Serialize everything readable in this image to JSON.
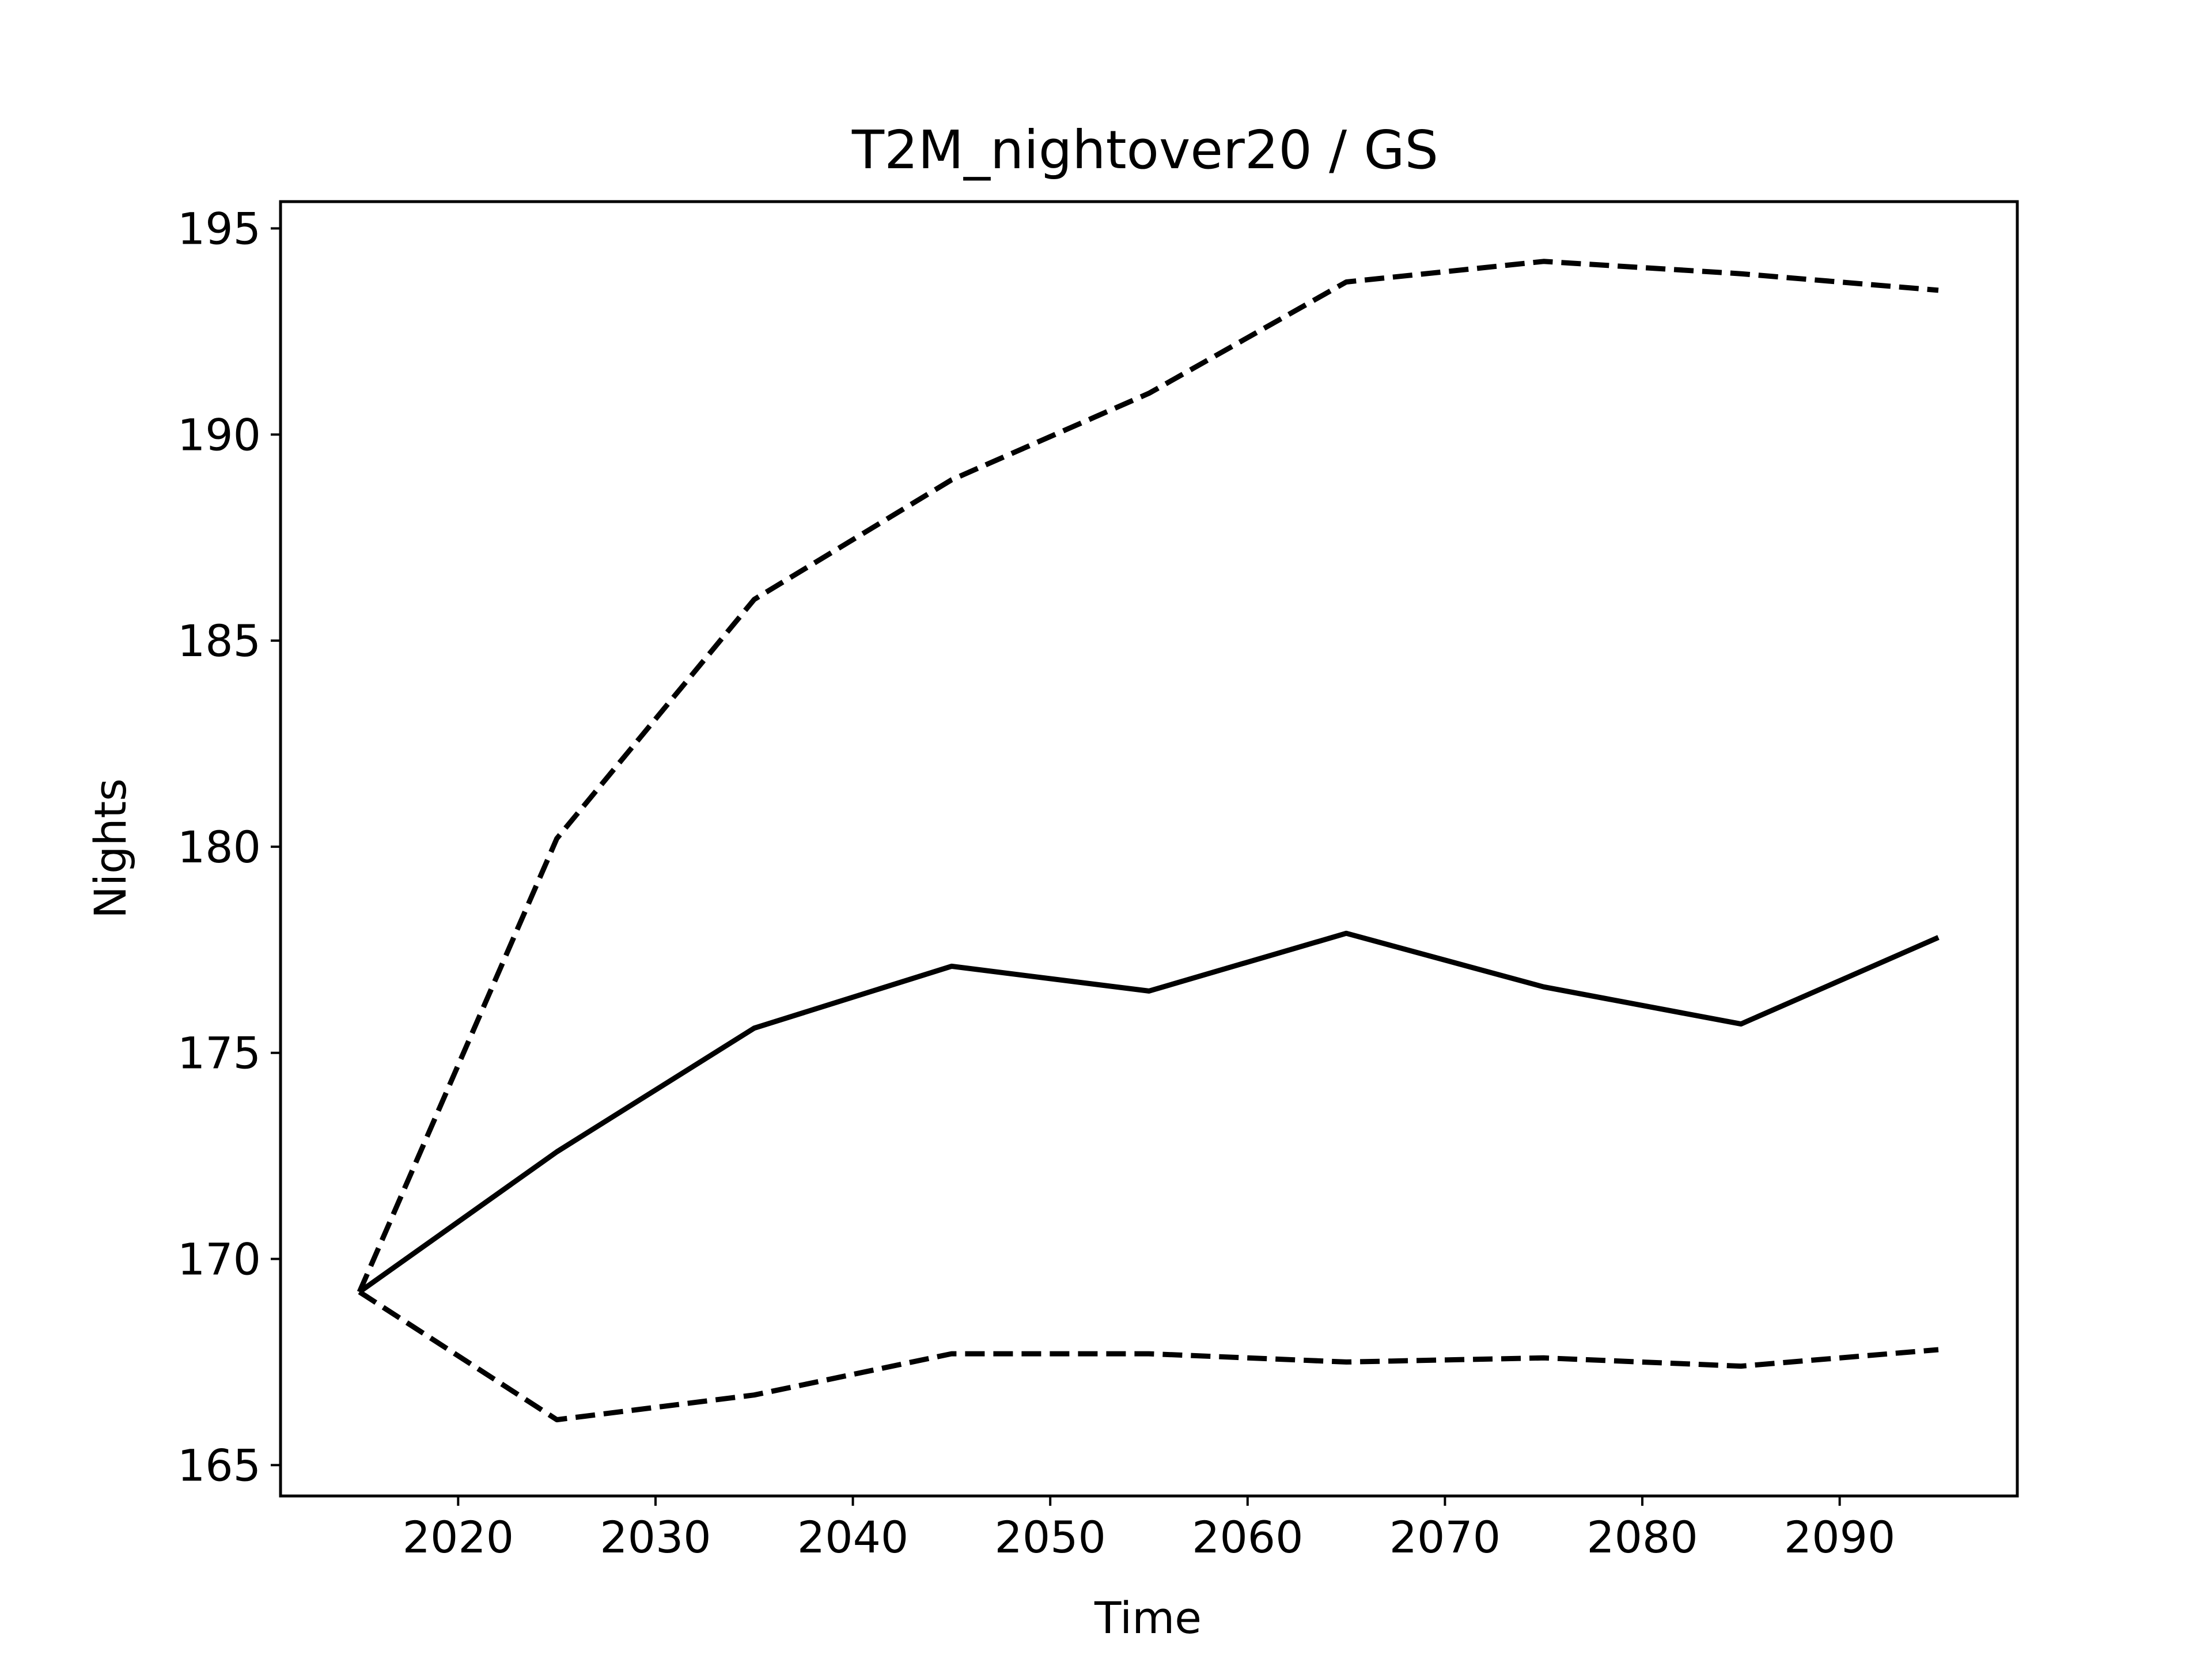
{
  "chart_data": {
    "type": "line",
    "title": "T2M_nightover20 / GS",
    "xlabel": "Time",
    "ylabel": "Nights",
    "xlim": [
      2011,
      2099
    ],
    "ylim": [
      164.25,
      195.65
    ],
    "x_ticks": [
      2020,
      2030,
      2040,
      2050,
      2060,
      2070,
      2080,
      2090
    ],
    "y_ticks": [
      165,
      170,
      175,
      180,
      185,
      190,
      195
    ],
    "x_tick_labels": [
      "2020",
      "2030",
      "2040",
      "2050",
      "2060",
      "2070",
      "2080",
      "2090"
    ],
    "y_tick_labels": [
      "165",
      "170",
      "175",
      "180",
      "185",
      "190",
      "195"
    ],
    "x": [
      2015,
      2025,
      2035,
      2045,
      2055,
      2065,
      2075,
      2085,
      2095
    ],
    "series": [
      {
        "values": [
          169.2,
          180.2,
          186.0,
          188.9,
          191.0,
          193.7,
          194.2,
          193.9,
          193.5
        ],
        "style": "dashed",
        "color": "#000000"
      },
      {
        "values": [
          169.2,
          172.6,
          175.6,
          177.1,
          176.5,
          177.9,
          176.6,
          175.7,
          177.8
        ],
        "style": "solid",
        "color": "#000000"
      },
      {
        "values": [
          169.2,
          166.1,
          166.7,
          167.7,
          167.7,
          167.5,
          167.6,
          167.4,
          167.8
        ],
        "style": "dashed",
        "color": "#000000"
      }
    ],
    "grid": false,
    "legend": "none"
  }
}
